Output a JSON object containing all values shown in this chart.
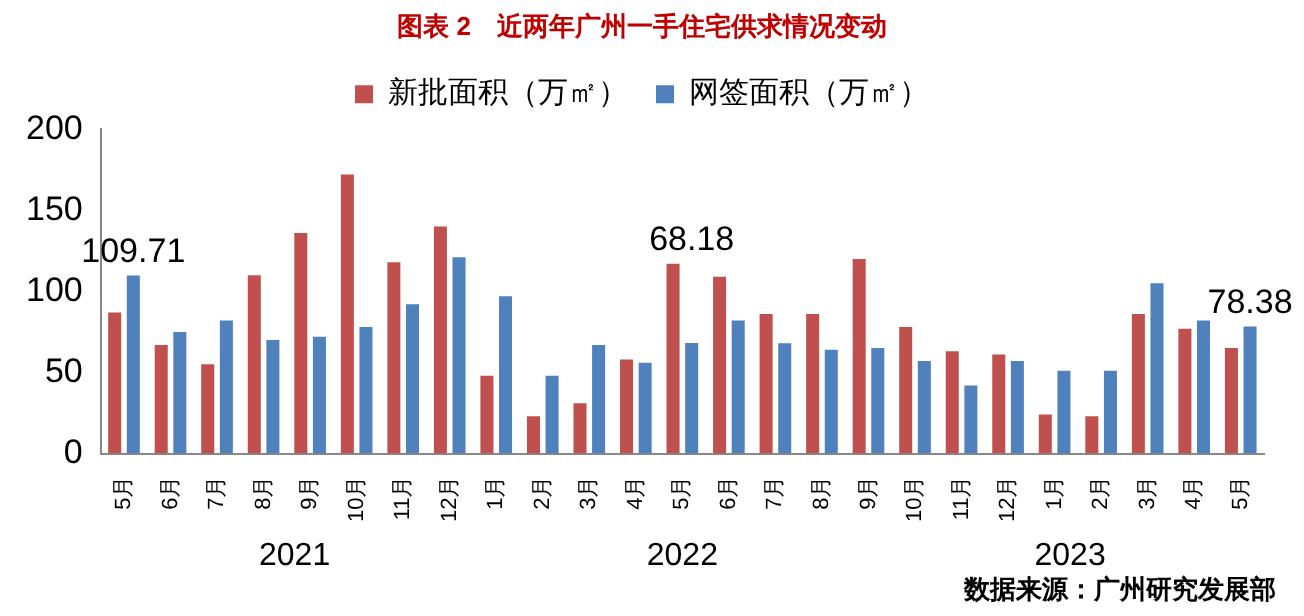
{
  "chart_data": {
    "type": "bar",
    "title": "图表 2　近两年广州一手住宅供求情况变动",
    "categories": [
      "5月",
      "6月",
      "7月",
      "8月",
      "9月",
      "10月",
      "11月",
      "12月",
      "1月",
      "2月",
      "3月",
      "4月",
      "5月",
      "6月",
      "7月",
      "8月",
      "9月",
      "10月",
      "11月",
      "12月",
      "1月",
      "2月",
      "3月",
      "4月",
      "5月"
    ],
    "series": [
      {
        "name": "新批面积（万㎡）",
        "color": "#c0504d",
        "values": [
          87,
          67,
          55,
          110,
          136,
          172,
          118,
          140,
          48,
          23,
          31,
          58,
          117,
          109,
          86,
          86,
          120,
          78,
          63,
          61,
          24,
          23,
          86,
          77,
          65
        ]
      },
      {
        "name": "网签面积（万㎡）",
        "color": "#4f81bd",
        "values": [
          109.71,
          75,
          82,
          70,
          72,
          78,
          92,
          121,
          97,
          48,
          67,
          56,
          68.18,
          82,
          68,
          64,
          65,
          57,
          42,
          57,
          51,
          51,
          105,
          82,
          78.38
        ],
        "value_labels": [
          "109.71",
          null,
          null,
          null,
          null,
          null,
          null,
          null,
          null,
          null,
          null,
          null,
          "68.18",
          null,
          null,
          null,
          null,
          null,
          null,
          null,
          null,
          null,
          null,
          null,
          "78.38"
        ]
      }
    ],
    "ylim": [
      0,
      200
    ],
    "yticks": [
      0,
      50,
      100,
      150,
      200
    ],
    "grid": false,
    "legend": "top",
    "annotations": [
      "2021",
      "2022",
      "2023",
      "数据来源：广州研究发展部"
    ]
  }
}
